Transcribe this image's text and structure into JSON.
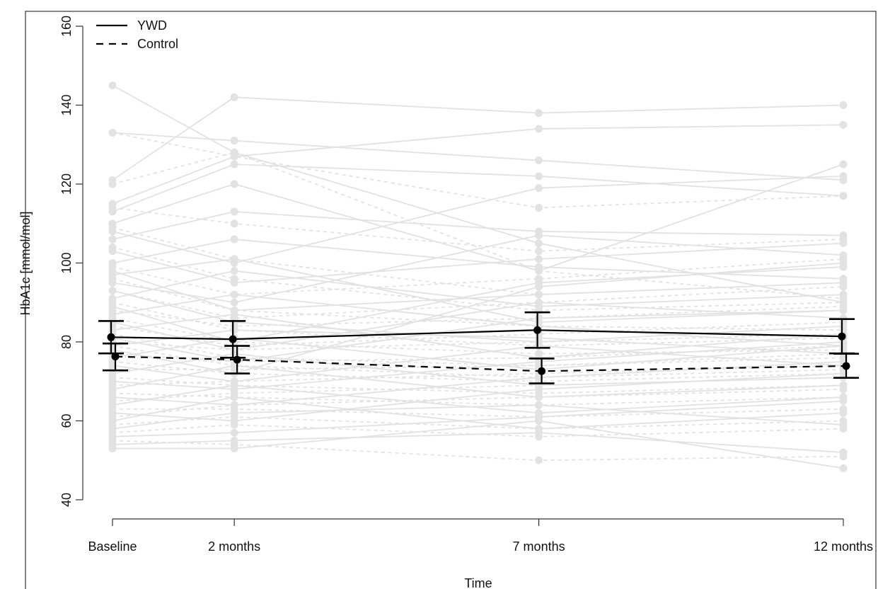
{
  "chart_data": {
    "type": "line",
    "title": "",
    "xlabel": "Time",
    "ylabel": "HbA1c [mmol/mol]",
    "x_ticks": [
      {
        "label": "Baseline",
        "month": 0
      },
      {
        "label": "2 months",
        "month": 2
      },
      {
        "label": "7 months",
        "month": 7
      },
      {
        "label": "12 months",
        "month": 12
      }
    ],
    "ylim": [
      40,
      160
    ],
    "y_ticks": [
      40,
      60,
      80,
      100,
      120,
      140,
      160
    ],
    "grid": false,
    "legend_position": "top-left",
    "series": [
      {
        "name": "YWD",
        "line_style": "solid",
        "color": "#000000",
        "mean": [
          81.2,
          80.7,
          83.0,
          81.4
        ],
        "lower": [
          77.1,
          76.0,
          78.5,
          77.1
        ],
        "upper": [
          85.3,
          85.3,
          87.5,
          85.8
        ]
      },
      {
        "name": "Control",
        "line_style": "dashed",
        "color": "#000000",
        "mean": [
          76.3,
          75.5,
          72.6,
          73.9
        ],
        "lower": [
          72.8,
          72.0,
          69.5,
          70.9
        ],
        "upper": [
          79.6,
          79.0,
          75.8,
          77.0
        ]
      }
    ],
    "individual_trajectories": {
      "color": "#e2e2e2",
      "YWD": [
        [
          145,
          128,
          105,
          90
        ],
        [
          133,
          131,
          126,
          121
        ],
        [
          121,
          142,
          138,
          140
        ],
        [
          115,
          127,
          134,
          135
        ],
        [
          113,
          125,
          122,
          117
        ],
        [
          110,
          120,
          98,
          125
        ],
        [
          108,
          100,
          119,
          122
        ],
        [
          106,
          113,
          108,
          107
        ],
        [
          103,
          95,
          101,
          105
        ],
        [
          100,
          106,
          99,
          96
        ],
        [
          98,
          88,
          92,
          95
        ],
        [
          97,
          101,
          85,
          88
        ],
        [
          95,
          90,
          107,
          102
        ],
        [
          93,
          85,
          80,
          84
        ],
        [
          91,
          98,
          89,
          92
        ],
        [
          89,
          80,
          95,
          99
        ],
        [
          87,
          92,
          84,
          79
        ],
        [
          85,
          78,
          90,
          86
        ],
        [
          83,
          87,
          76,
          82
        ],
        [
          81,
          75,
          86,
          88
        ],
        [
          79,
          83,
          81,
          77
        ],
        [
          78,
          72,
          94,
          100
        ],
        [
          76,
          81,
          73,
          79
        ],
        [
          74,
          70,
          79,
          74
        ],
        [
          72,
          77,
          69,
          71
        ],
        [
          70,
          68,
          75,
          80
        ],
        [
          68,
          74,
          66,
          69
        ],
        [
          66,
          64,
          71,
          75
        ],
        [
          64,
          69,
          62,
          66
        ],
        [
          62,
          60,
          68,
          72
        ],
        [
          60,
          66,
          58,
          62
        ],
        [
          58,
          62,
          64,
          59
        ],
        [
          56,
          57,
          61,
          65
        ],
        [
          54,
          55,
          57,
          52
        ],
        [
          53,
          53,
          60,
          48
        ]
      ],
      "Control": [
        [
          133,
          127,
          114,
          117
        ],
        [
          120,
          128,
          98,
          91
        ],
        [
          114,
          110,
          103,
          106
        ],
        [
          109,
          101,
          92,
          95
        ],
        [
          104,
          96,
          88,
          90
        ],
        [
          99,
          92,
          96,
          101
        ],
        [
          96,
          88,
          84,
          83
        ],
        [
          93,
          86,
          90,
          94
        ],
        [
          90,
          83,
          79,
          81
        ],
        [
          88,
          84,
          86,
          89
        ],
        [
          86,
          80,
          77,
          78
        ],
        [
          84,
          79,
          82,
          85
        ],
        [
          82,
          76,
          74,
          76
        ],
        [
          80,
          78,
          80,
          82
        ],
        [
          79,
          74,
          71,
          73
        ],
        [
          77,
          75,
          76,
          79
        ],
        [
          75,
          72,
          70,
          72
        ],
        [
          73,
          73,
          74,
          77
        ],
        [
          71,
          69,
          67,
          69
        ],
        [
          69,
          70,
          72,
          74
        ],
        [
          67,
          66,
          64,
          66
        ],
        [
          65,
          67,
          69,
          71
        ],
        [
          63,
          63,
          61,
          63
        ],
        [
          61,
          64,
          66,
          68
        ],
        [
          59,
          61,
          58,
          60
        ],
        [
          57,
          59,
          56,
          58
        ],
        [
          55,
          54,
          50,
          51
        ]
      ]
    }
  }
}
